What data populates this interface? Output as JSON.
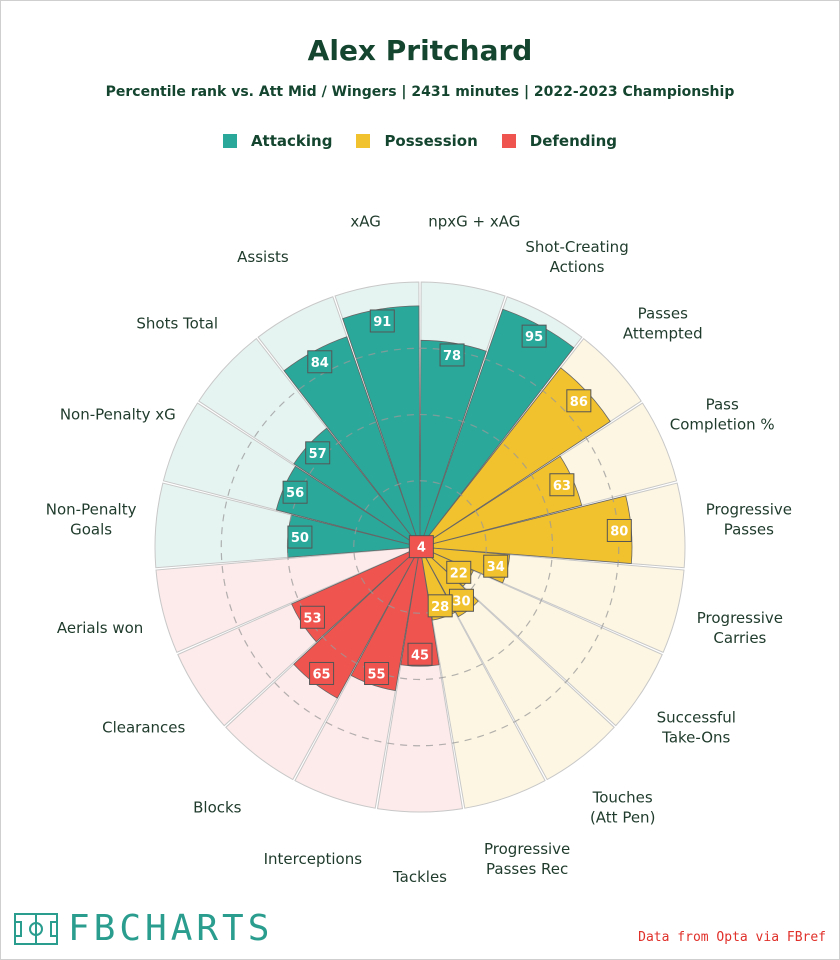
{
  "header": {
    "title": "Alex Pritchard",
    "subtitle": "Percentile rank vs. Att Mid / Wingers | 2431 minutes | 2022-2023 Championship"
  },
  "legend": [
    {
      "label": "Attacking",
      "color": "#2aa99b"
    },
    {
      "label": "Possession",
      "color": "#f2c12e"
    },
    {
      "label": "Defending",
      "color": "#f0544f"
    }
  ],
  "chart_data": {
    "type": "radar-bar",
    "title": "Alex Pritchard",
    "range": [
      0,
      100
    ],
    "grid_rings": [
      25,
      50,
      75
    ],
    "categories": [
      {
        "label": "npxG + xAG",
        "value": 78,
        "group": "Attacking"
      },
      {
        "label": "Shot-Creating Actions",
        "value": 95,
        "group": "Attacking"
      },
      {
        "label": "Passes Attempted",
        "value": 86,
        "group": "Possession"
      },
      {
        "label": "Pass Completion %",
        "value": 63,
        "group": "Possession"
      },
      {
        "label": "Progressive Passes",
        "value": 80,
        "group": "Possession"
      },
      {
        "label": "Progressive Carries",
        "value": 34,
        "group": "Possession"
      },
      {
        "label": "Successful Take-Ons",
        "value": 22,
        "group": "Possession"
      },
      {
        "label": "Touches (Att Pen)",
        "value": 30,
        "group": "Possession"
      },
      {
        "label": "Progressive Passes Rec",
        "value": 28,
        "group": "Possession"
      },
      {
        "label": "Tackles",
        "value": 45,
        "group": "Defending"
      },
      {
        "label": "Interceptions",
        "value": 55,
        "group": "Defending"
      },
      {
        "label": "Blocks",
        "value": 65,
        "group": "Defending"
      },
      {
        "label": "Clearances",
        "value": 53,
        "group": "Defending"
      },
      {
        "label": "Aerials won",
        "value": 4,
        "group": "Defending"
      },
      {
        "label": "Non-Penalty Goals",
        "value": 50,
        "group": "Attacking"
      },
      {
        "label": "Non-Penalty xG",
        "value": 56,
        "group": "Attacking"
      },
      {
        "label": "Shots Total",
        "value": 57,
        "group": "Attacking"
      },
      {
        "label": "Assists",
        "value": 84,
        "group": "Attacking"
      },
      {
        "label": "xAG",
        "value": 91,
        "group": "Attacking"
      }
    ]
  },
  "footer": {
    "logo_text": "FBCHARTS",
    "source": "Data from Opta via FBref"
  }
}
